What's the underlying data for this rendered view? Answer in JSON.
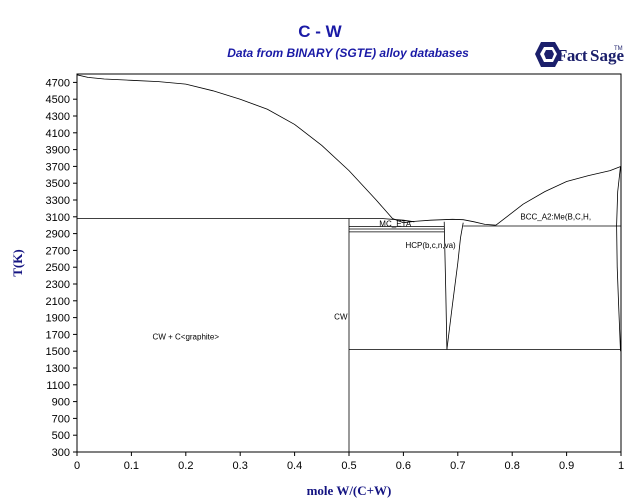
{
  "header": {
    "title": "C - W",
    "subtitle": "Data from BINARY (SGTE) alloy databases",
    "logo_text_1": "Fact",
    "logo_text_2": "Sage",
    "logo_trademark": "TM"
  },
  "chart_data": {
    "type": "line",
    "xlabel": "mole W/(C+W)",
    "ylabel": "T(K)",
    "xlim": [
      0,
      1
    ],
    "ylim": [
      300,
      4800
    ],
    "x_ticks": [
      0,
      0.1,
      0.2,
      0.3,
      0.4,
      0.5,
      0.6,
      0.7,
      0.8,
      0.9,
      1
    ],
    "x_tick_labels": [
      "0",
      "0.1",
      "0.2",
      "0.3",
      "0.4",
      "0.5",
      "0.6",
      "0.7",
      "0.8",
      "0.9",
      "1"
    ],
    "y_ticks": [
      300,
      500,
      700,
      900,
      1100,
      1300,
      1500,
      1700,
      1900,
      2100,
      2300,
      2500,
      2700,
      2900,
      3100,
      3300,
      3500,
      3700,
      3900,
      4100,
      4300,
      4500,
      4700
    ],
    "y_tick_labels": [
      "300",
      "500",
      "700",
      "900",
      "1100",
      "1300",
      "1500",
      "1700",
      "1900",
      "2100",
      "2300",
      "2500",
      "2700",
      "2900",
      "3100",
      "3300",
      "3500",
      "3700",
      "3900",
      "4100",
      "4300",
      "4500",
      "4700"
    ],
    "grid": false,
    "series": [
      {
        "x": [
          0,
          0.02,
          0.05,
          0.1,
          0.15,
          0.2,
          0.25,
          0.3,
          0.35,
          0.4,
          0.45,
          0.5,
          0.55,
          0.58,
          0.6
        ],
        "y": [
          4790,
          4760,
          4740,
          4725,
          4710,
          4680,
          4600,
          4500,
          4380,
          4200,
          3950,
          3650,
          3300,
          3080,
          3030
        ]
      },
      {
        "x": [
          0.6,
          0.62,
          0.65,
          0.69,
          0.71,
          0.73,
          0.75,
          0.77
        ],
        "y": [
          3030,
          3045,
          3060,
          3070,
          3065,
          3040,
          3010,
          3000
        ]
      },
      {
        "x": [
          0.77,
          0.79,
          0.82,
          0.86,
          0.9,
          0.94,
          0.98,
          1.0
        ],
        "y": [
          3000,
          3100,
          3250,
          3400,
          3520,
          3590,
          3650,
          3700
        ]
      },
      {
        "x": [
          0.999,
          0.994,
          0.992,
          0.993,
          0.996,
          0.999
        ],
        "y": [
          3700,
          3400,
          3000,
          2500,
          2000,
          1500
        ]
      },
      {
        "x": [
          0,
          0.5
        ],
        "y": [
          3080,
          3080
        ]
      },
      {
        "x": [
          0.5,
          0.5
        ],
        "y": [
          300,
          3080
        ]
      },
      {
        "x": [
          0.5,
          0.56,
          0.6,
          0.62
        ],
        "y": [
          3080,
          3080,
          3060,
          3040
        ]
      },
      {
        "x": [
          0.5,
          0.675
        ],
        "y": [
          2985,
          2985
        ]
      },
      {
        "x": [
          0.5,
          0.675
        ],
        "y": [
          2920,
          2920
        ]
      },
      {
        "x": [
          0.5,
          0.675
        ],
        "y": [
          2955,
          2955
        ]
      },
      {
        "x": [
          0.675,
          0.678,
          0.68
        ],
        "y": [
          3040,
          2200,
          1520
        ]
      },
      {
        "x": [
          0.68,
          0.69,
          0.7,
          0.705,
          0.71
        ],
        "y": [
          1520,
          2050,
          2550,
          2850,
          3030
        ]
      },
      {
        "x": [
          0.71,
          0.77,
          1.0
        ],
        "y": [
          2990,
          2990,
          2990
        ]
      },
      {
        "x": [
          0.5,
          1.0
        ],
        "y": [
          1520,
          1520
        ]
      }
    ],
    "annotations": [
      {
        "text": "CW + C<graphite>",
        "x": 0.2,
        "y": 1640
      },
      {
        "text": "CW",
        "x": 0.485,
        "y": 1880
      },
      {
        "text": "MC_ETA",
        "x": 0.585,
        "y": 2985
      },
      {
        "text": "HCP(b,c,n,va)",
        "x": 0.65,
        "y": 2730
      },
      {
        "text": "BCC_A2:Me(B,C,H,",
        "x": 0.88,
        "y": 3070
      }
    ]
  }
}
